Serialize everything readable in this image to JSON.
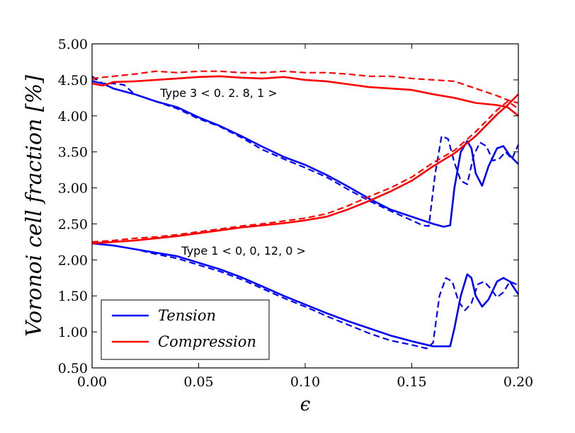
{
  "chart_data": {
    "type": "line",
    "title": "",
    "xlabel": "ϵ",
    "ylabel": "Voronoi cell fraction [%]",
    "xlim": [
      0.0,
      0.2
    ],
    "ylim": [
      0.5,
      5.0
    ],
    "xticks": [
      "0.00",
      "0.05",
      "0.10",
      "0.15",
      "0.20"
    ],
    "yticks": [
      "0.50",
      "1.00",
      "1.50",
      "2.00",
      "2.50",
      "3.00",
      "3.50",
      "4.00",
      "4.50",
      "5.00"
    ],
    "grid": false,
    "legend": {
      "placement": "lower-left",
      "entries": [
        {
          "label": "Tension",
          "color": "#0000ff"
        },
        {
          "label": "Compression",
          "color": "#ff0000"
        }
      ]
    },
    "annotations": [
      {
        "text": "Type 3 < 0. 2. 8, 1 >",
        "x": 0.032,
        "y": 4.32
      },
      {
        "text": "Type 1 < 0, 0, 12, 0 >",
        "x": 0.042,
        "y": 2.13
      }
    ],
    "series": [
      {
        "name": "Tension",
        "group": "Type 3",
        "style": "solid",
        "color": "#0000ff",
        "x": [
          0.0,
          0.005,
          0.01,
          0.02,
          0.03,
          0.04,
          0.05,
          0.06,
          0.07,
          0.08,
          0.09,
          0.1,
          0.11,
          0.12,
          0.13,
          0.14,
          0.15,
          0.16,
          0.165,
          0.168,
          0.17,
          0.173,
          0.176,
          0.178,
          0.18,
          0.183,
          0.186,
          0.19,
          0.193,
          0.196,
          0.2
        ],
        "y": [
          4.48,
          4.45,
          4.38,
          4.3,
          4.2,
          4.12,
          3.98,
          3.86,
          3.72,
          3.57,
          3.43,
          3.32,
          3.18,
          3.02,
          2.85,
          2.7,
          2.6,
          2.5,
          2.46,
          2.48,
          3.0,
          3.5,
          3.65,
          3.55,
          3.2,
          3.03,
          3.3,
          3.55,
          3.58,
          3.45,
          3.33
        ]
      },
      {
        "name": "Tension",
        "group": "Type 3",
        "style": "dashed",
        "color": "#0000ff",
        "x": [
          0.0,
          0.005,
          0.01,
          0.015,
          0.02,
          0.03,
          0.04,
          0.05,
          0.06,
          0.07,
          0.08,
          0.09,
          0.1,
          0.11,
          0.12,
          0.13,
          0.14,
          0.15,
          0.155,
          0.158,
          0.161,
          0.164,
          0.167,
          0.17,
          0.173,
          0.176,
          0.179,
          0.182,
          0.185,
          0.188,
          0.191,
          0.194,
          0.197,
          0.2
        ],
        "y": [
          4.55,
          4.45,
          4.45,
          4.43,
          4.3,
          4.2,
          4.1,
          3.96,
          3.85,
          3.7,
          3.53,
          3.4,
          3.28,
          3.15,
          2.98,
          2.82,
          2.68,
          2.55,
          2.48,
          2.47,
          3.2,
          3.72,
          3.68,
          3.35,
          3.1,
          3.05,
          3.45,
          3.63,
          3.58,
          3.38,
          3.4,
          3.5,
          3.4,
          3.6
        ]
      },
      {
        "name": "Tension",
        "group": "Type 1",
        "style": "solid",
        "color": "#0000ff",
        "x": [
          0.0,
          0.01,
          0.02,
          0.03,
          0.04,
          0.05,
          0.06,
          0.07,
          0.08,
          0.09,
          0.1,
          0.11,
          0.12,
          0.13,
          0.14,
          0.15,
          0.16,
          0.165,
          0.168,
          0.17,
          0.173,
          0.176,
          0.178,
          0.18,
          0.183,
          0.186,
          0.19,
          0.193,
          0.196,
          0.2
        ],
        "y": [
          2.23,
          2.2,
          2.15,
          2.1,
          2.05,
          1.96,
          1.87,
          1.76,
          1.63,
          1.5,
          1.38,
          1.26,
          1.15,
          1.05,
          0.95,
          0.87,
          0.8,
          0.8,
          0.8,
          1.05,
          1.5,
          1.8,
          1.75,
          1.5,
          1.35,
          1.45,
          1.7,
          1.75,
          1.7,
          1.52
        ]
      },
      {
        "name": "Tension",
        "group": "Type 1",
        "style": "dashed",
        "color": "#0000ff",
        "x": [
          0.0,
          0.01,
          0.02,
          0.03,
          0.04,
          0.05,
          0.06,
          0.07,
          0.08,
          0.09,
          0.1,
          0.11,
          0.12,
          0.13,
          0.14,
          0.15,
          0.157,
          0.16,
          0.163,
          0.166,
          0.169,
          0.172,
          0.175,
          0.178,
          0.181,
          0.184,
          0.187,
          0.19,
          0.193,
          0.196,
          0.2
        ],
        "y": [
          2.23,
          2.2,
          2.15,
          2.08,
          2.02,
          1.93,
          1.84,
          1.73,
          1.6,
          1.47,
          1.35,
          1.22,
          1.1,
          0.98,
          0.88,
          0.82,
          0.77,
          0.85,
          1.5,
          1.75,
          1.7,
          1.42,
          1.3,
          1.4,
          1.66,
          1.7,
          1.6,
          1.48,
          1.55,
          1.7,
          1.65
        ]
      },
      {
        "name": "Compression",
        "group": "Type 3",
        "style": "solid",
        "color": "#ff0000",
        "x": [
          0.0,
          0.005,
          0.01,
          0.02,
          0.03,
          0.04,
          0.05,
          0.06,
          0.07,
          0.08,
          0.09,
          0.1,
          0.11,
          0.12,
          0.13,
          0.14,
          0.15,
          0.16,
          0.17,
          0.18,
          0.19,
          0.195,
          0.2
        ],
        "y": [
          4.45,
          4.42,
          4.47,
          4.48,
          4.5,
          4.52,
          4.54,
          4.55,
          4.53,
          4.52,
          4.54,
          4.5,
          4.48,
          4.44,
          4.4,
          4.38,
          4.36,
          4.3,
          4.25,
          4.18,
          4.15,
          4.12,
          4.0
        ]
      },
      {
        "name": "Compression",
        "group": "Type 3",
        "style": "dashed",
        "color": "#ff0000",
        "x": [
          0.0,
          0.01,
          0.02,
          0.03,
          0.04,
          0.05,
          0.06,
          0.07,
          0.08,
          0.09,
          0.1,
          0.11,
          0.12,
          0.13,
          0.14,
          0.15,
          0.16,
          0.17,
          0.18,
          0.19,
          0.195,
          0.2
        ],
        "y": [
          4.52,
          4.55,
          4.58,
          4.62,
          4.6,
          4.62,
          4.62,
          4.6,
          4.6,
          4.62,
          4.6,
          4.6,
          4.58,
          4.55,
          4.55,
          4.52,
          4.5,
          4.48,
          4.38,
          4.28,
          4.22,
          4.18
        ]
      },
      {
        "name": "Compression",
        "group": "Type 1",
        "style": "solid",
        "color": "#ff0000",
        "x": [
          0.0,
          0.01,
          0.02,
          0.03,
          0.04,
          0.05,
          0.06,
          0.07,
          0.08,
          0.09,
          0.1,
          0.11,
          0.12,
          0.13,
          0.14,
          0.15,
          0.16,
          0.17,
          0.18,
          0.19,
          0.195,
          0.2
        ],
        "y": [
          2.23,
          2.25,
          2.27,
          2.3,
          2.33,
          2.37,
          2.41,
          2.45,
          2.48,
          2.51,
          2.55,
          2.6,
          2.7,
          2.82,
          2.95,
          3.1,
          3.3,
          3.48,
          3.72,
          4.02,
          4.15,
          4.3
        ]
      },
      {
        "name": "Compression",
        "group": "Type 1",
        "style": "dashed",
        "color": "#ff0000",
        "x": [
          0.0,
          0.01,
          0.02,
          0.03,
          0.04,
          0.05,
          0.06,
          0.07,
          0.08,
          0.09,
          0.1,
          0.11,
          0.12,
          0.13,
          0.14,
          0.15,
          0.16,
          0.17,
          0.18,
          0.19,
          0.195,
          0.2
        ],
        "y": [
          2.25,
          2.27,
          2.3,
          2.32,
          2.35,
          2.39,
          2.43,
          2.47,
          2.5,
          2.54,
          2.58,
          2.64,
          2.75,
          2.88,
          3.0,
          3.15,
          3.35,
          3.52,
          3.78,
          4.08,
          4.2,
          4.1
        ]
      }
    ]
  }
}
